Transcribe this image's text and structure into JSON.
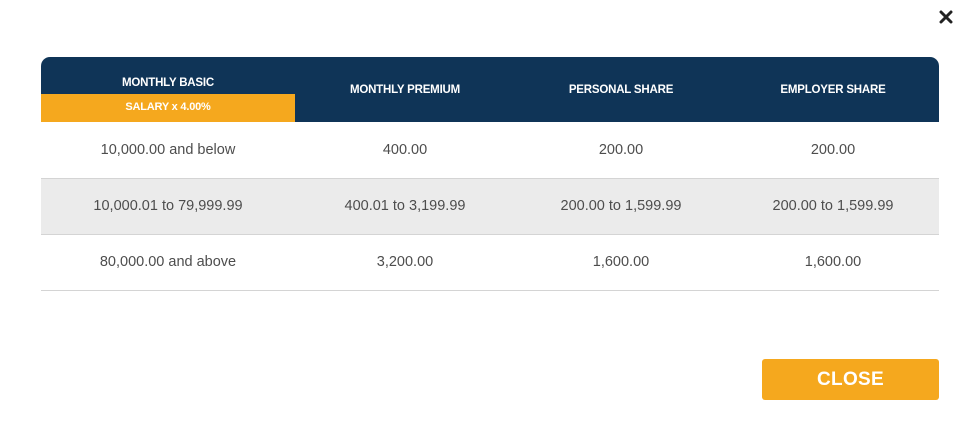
{
  "modal": {
    "close_button_label": "CLOSE"
  },
  "icons": {
    "close": "close-x-icon"
  },
  "colors": {
    "header_bg": "#0f3457",
    "accent": "#f5a81e",
    "alt_row_bg": "#ebebeb"
  },
  "table": {
    "headers": [
      {
        "label": "MONTHLY BASIC",
        "sublabel": "SALARY x 4.00%"
      },
      {
        "label": "MONTHLY PREMIUM"
      },
      {
        "label": "PERSONAL SHARE"
      },
      {
        "label": "EMPLOYER SHARE"
      }
    ],
    "rows": [
      [
        "10,000.00 and below",
        "400.00",
        "200.00",
        "200.00"
      ],
      [
        "10,000.01 to 79,999.99",
        "400.01 to 3,199.99",
        "200.00 to 1,599.99",
        "200.00 to 1,599.99"
      ],
      [
        "80,000.00 and above",
        "3,200.00",
        "1,600.00",
        "1,600.00"
      ]
    ]
  }
}
